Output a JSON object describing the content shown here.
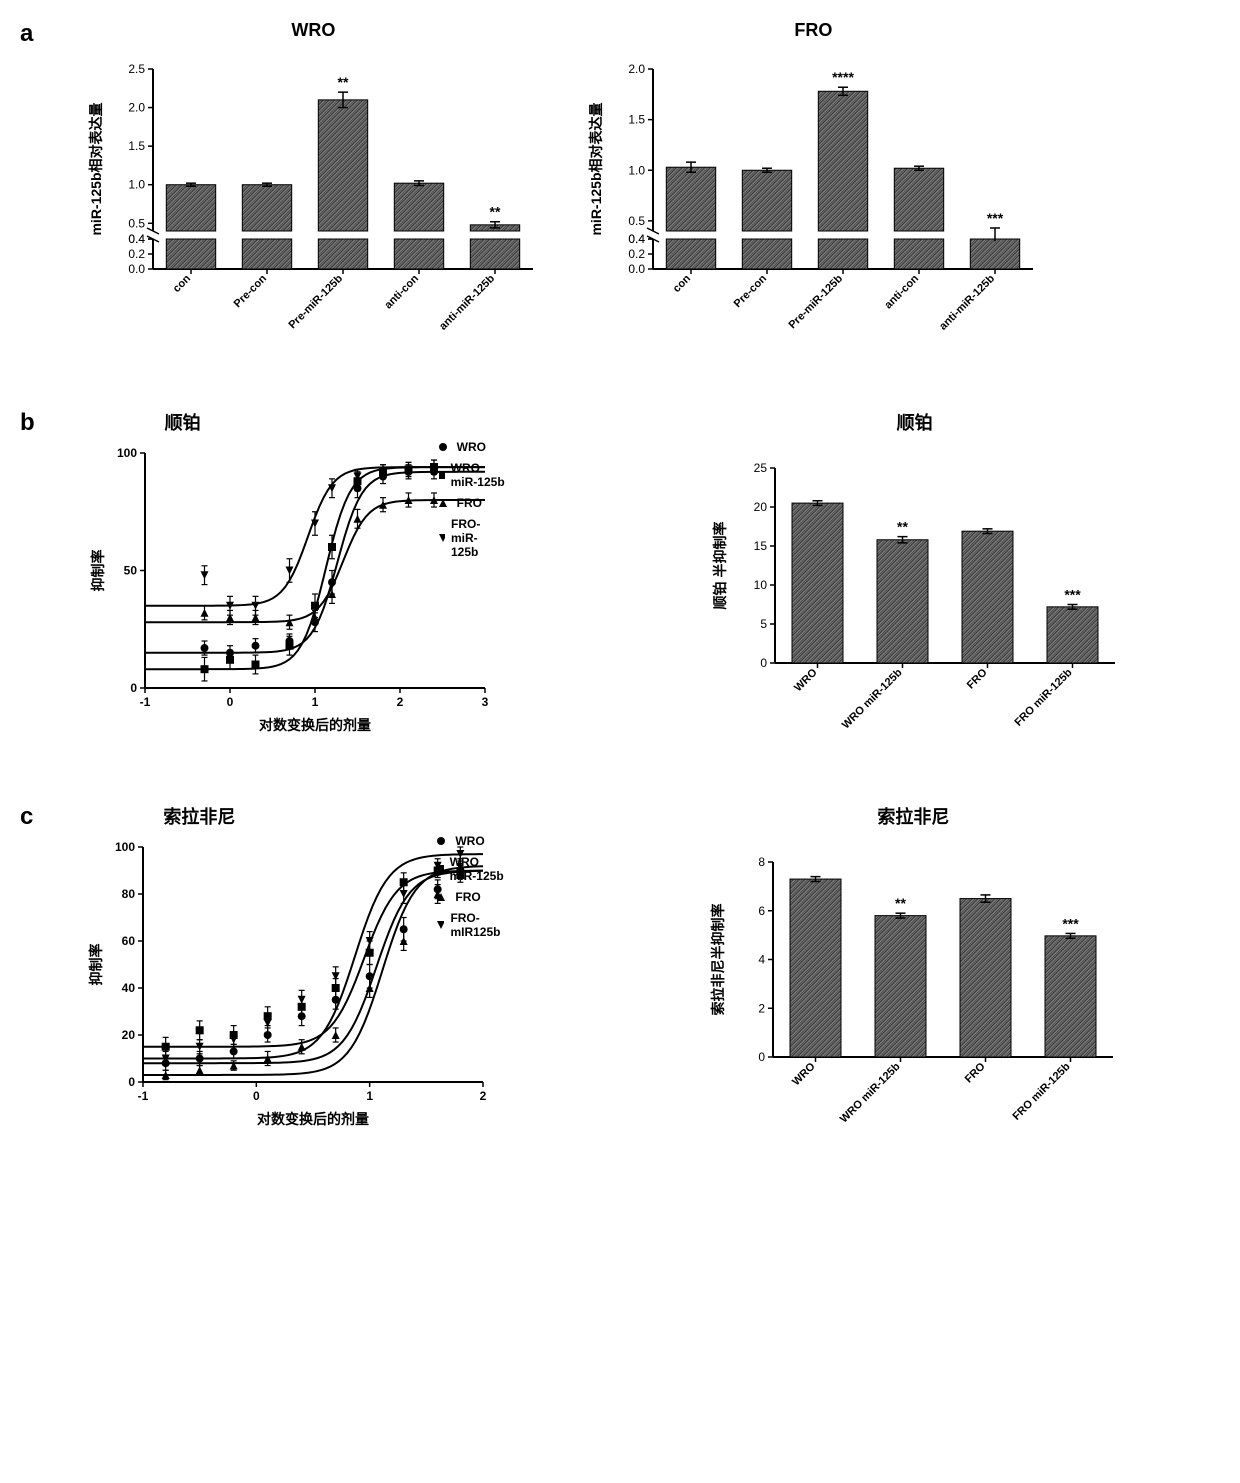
{
  "colors": {
    "bar_fill": "#7a7a7a",
    "bar_pattern": "#3a3a3a",
    "axis": "#000000",
    "line": "#000000",
    "bg": "#ffffff"
  },
  "panel_a": {
    "label": "a",
    "wro": {
      "title": "WRO",
      "ylabel": "miR-125b相对表达量",
      "ylim_upper": [
        0.4,
        2.5
      ],
      "ylim_lower": [
        0.0,
        0.4
      ],
      "yticks_upper": [
        0.4,
        0.5,
        1.0,
        1.5,
        2.0,
        2.5
      ],
      "yticks_lower": [
        0.0,
        0.2,
        0.4
      ],
      "categories": [
        "con",
        "Pre-con",
        "Pre-miR-125b",
        "anti-con",
        "anti-miR-125b"
      ],
      "values": [
        1.0,
        1.0,
        2.1,
        1.02,
        0.48
      ],
      "errors": [
        0.02,
        0.02,
        0.1,
        0.03,
        0.04
      ],
      "sig": [
        "",
        "",
        "**",
        "",
        "**"
      ],
      "bar_width": 0.65
    },
    "fro": {
      "title": "FRO",
      "ylabel": "miR-125b相对表达量",
      "ylim_upper": [
        0.4,
        2.0
      ],
      "ylim_lower": [
        0.0,
        0.4
      ],
      "yticks_upper": [
        0.4,
        0.5,
        1.0,
        1.5,
        2.0
      ],
      "yticks_lower": [
        0.0,
        0.2,
        0.4
      ],
      "categories": [
        "con",
        "Pre-con",
        "Pre-miR-125b",
        "anti-con",
        "anti-miR-125b"
      ],
      "values": [
        1.03,
        1.0,
        1.78,
        1.02,
        0.4
      ],
      "errors": [
        0.05,
        0.02,
        0.04,
        0.02,
        0.03
      ],
      "sig": [
        "",
        "",
        "****",
        "",
        "***"
      ],
      "bar_width": 0.65
    }
  },
  "panel_b": {
    "label": "b",
    "curve": {
      "title": "顺铂",
      "xlabel": "对数变换后的剂量",
      "ylabel": "抑制率",
      "xlim": [
        -1,
        3
      ],
      "ylim": [
        0,
        100
      ],
      "xticks": [
        -1,
        0,
        1,
        2,
        3
      ],
      "yticks": [
        0,
        50,
        100
      ],
      "series": [
        {
          "name": "WRO",
          "marker": "circle",
          "x": [
            -0.3,
            0,
            0.3,
            0.7,
            1.0,
            1.2,
            1.5,
            1.8,
            2.1,
            2.4
          ],
          "y": [
            17,
            15,
            18,
            20,
            28,
            45,
            85,
            90,
            92,
            92
          ],
          "err": [
            3,
            3,
            3,
            3,
            4,
            5,
            4,
            3,
            3,
            3
          ]
        },
        {
          "name": "WRO miR-125b",
          "marker": "square",
          "x": [
            -0.3,
            0,
            0.3,
            0.7,
            1.0,
            1.2,
            1.5,
            1.8,
            2.1,
            2.4
          ],
          "y": [
            8,
            12,
            10,
            18,
            35,
            60,
            88,
            92,
            93,
            94
          ],
          "err": [
            5,
            4,
            4,
            4,
            5,
            5,
            4,
            3,
            3,
            3
          ]
        },
        {
          "name": "FRO",
          "marker": "triangle-up",
          "x": [
            -0.3,
            0,
            0.3,
            0.7,
            1.0,
            1.2,
            1.5,
            1.8,
            2.1,
            2.4
          ],
          "y": [
            32,
            30,
            30,
            28,
            30,
            40,
            72,
            78,
            80,
            80
          ],
          "err": [
            3,
            3,
            3,
            3,
            3,
            4,
            4,
            3,
            3,
            3
          ]
        },
        {
          "name": "FRO-miR-125b",
          "marker": "triangle-down",
          "x": [
            -0.3,
            0,
            0.3,
            0.7,
            1.0,
            1.2,
            1.5,
            1.8,
            2.1,
            2.4
          ],
          "y": [
            48,
            35,
            35,
            50,
            70,
            85,
            90,
            92,
            93,
            94
          ],
          "err": [
            4,
            4,
            4,
            5,
            5,
            4,
            3,
            3,
            3,
            3
          ]
        }
      ]
    },
    "bar": {
      "title": "顺铂",
      "ylabel": "顺铂 半抑制率",
      "ylim": [
        0,
        25
      ],
      "yticks": [
        0,
        5,
        10,
        15,
        20,
        25
      ],
      "categories": [
        "WRO",
        "WRO miR-125b",
        "FRO",
        "FRO miR-125b"
      ],
      "values": [
        20.5,
        15.8,
        16.9,
        7.2
      ],
      "errors": [
        0.3,
        0.4,
        0.3,
        0.3
      ],
      "sig": [
        "",
        "**",
        "",
        "***"
      ],
      "bar_width": 0.6
    }
  },
  "panel_c": {
    "label": "c",
    "curve": {
      "title": "索拉非尼",
      "xlabel": "对数变换后的剂量",
      "ylabel": "抑制率",
      "xlim": [
        -1,
        2
      ],
      "ylim": [
        0,
        100
      ],
      "xticks": [
        -1,
        0,
        1,
        2
      ],
      "yticks": [
        0,
        20,
        40,
        60,
        80,
        100
      ],
      "series": [
        {
          "name": "WRO",
          "marker": "circle",
          "x": [
            -0.8,
            -0.5,
            -0.2,
            0.1,
            0.4,
            0.7,
            1.0,
            1.3,
            1.6,
            1.8
          ],
          "y": [
            8,
            10,
            13,
            20,
            28,
            35,
            45,
            65,
            82,
            90
          ],
          "err": [
            3,
            3,
            3,
            3,
            4,
            4,
            5,
            5,
            4,
            3
          ]
        },
        {
          "name": "WRO miR-125b",
          "marker": "square",
          "x": [
            -0.8,
            -0.5,
            -0.2,
            0.1,
            0.4,
            0.7,
            1.0,
            1.3,
            1.6,
            1.8
          ],
          "y": [
            15,
            22,
            20,
            28,
            32,
            40,
            55,
            85,
            90,
            88
          ],
          "err": [
            4,
            4,
            4,
            4,
            4,
            4,
            5,
            4,
            3,
            3
          ]
        },
        {
          "name": "FRO",
          "marker": "triangle-up",
          "x": [
            -0.8,
            -0.5,
            -0.2,
            0.1,
            0.4,
            0.7,
            1.0,
            1.3,
            1.6,
            1.8
          ],
          "y": [
            3,
            5,
            7,
            10,
            15,
            20,
            40,
            60,
            80,
            92
          ],
          "err": [
            2,
            2,
            2,
            3,
            3,
            3,
            4,
            4,
            4,
            3
          ]
        },
        {
          "name": "FRO-mIR125b",
          "marker": "triangle-down",
          "x": [
            -0.8,
            -0.5,
            -0.2,
            0.1,
            0.4,
            0.7,
            1.0,
            1.3,
            1.6,
            1.8
          ],
          "y": [
            10,
            15,
            18,
            25,
            35,
            45,
            60,
            80,
            92,
            97
          ],
          "err": [
            3,
            3,
            3,
            4,
            4,
            4,
            4,
            4,
            3,
            3
          ]
        }
      ]
    },
    "bar": {
      "title": "索拉非尼",
      "ylabel": "索拉非尼半抑制率",
      "ylim": [
        0,
        8
      ],
      "yticks": [
        0,
        2,
        4,
        6,
        8
      ],
      "categories": [
        "WRO",
        "WRO miR-125b",
        "FRO",
        "FRO miR-125b"
      ],
      "values": [
        7.3,
        5.8,
        6.5,
        4.97
      ],
      "errors": [
        0.1,
        0.1,
        0.15,
        0.1
      ],
      "sig": [
        "",
        "**",
        "",
        "***"
      ],
      "bar_width": 0.6
    }
  }
}
